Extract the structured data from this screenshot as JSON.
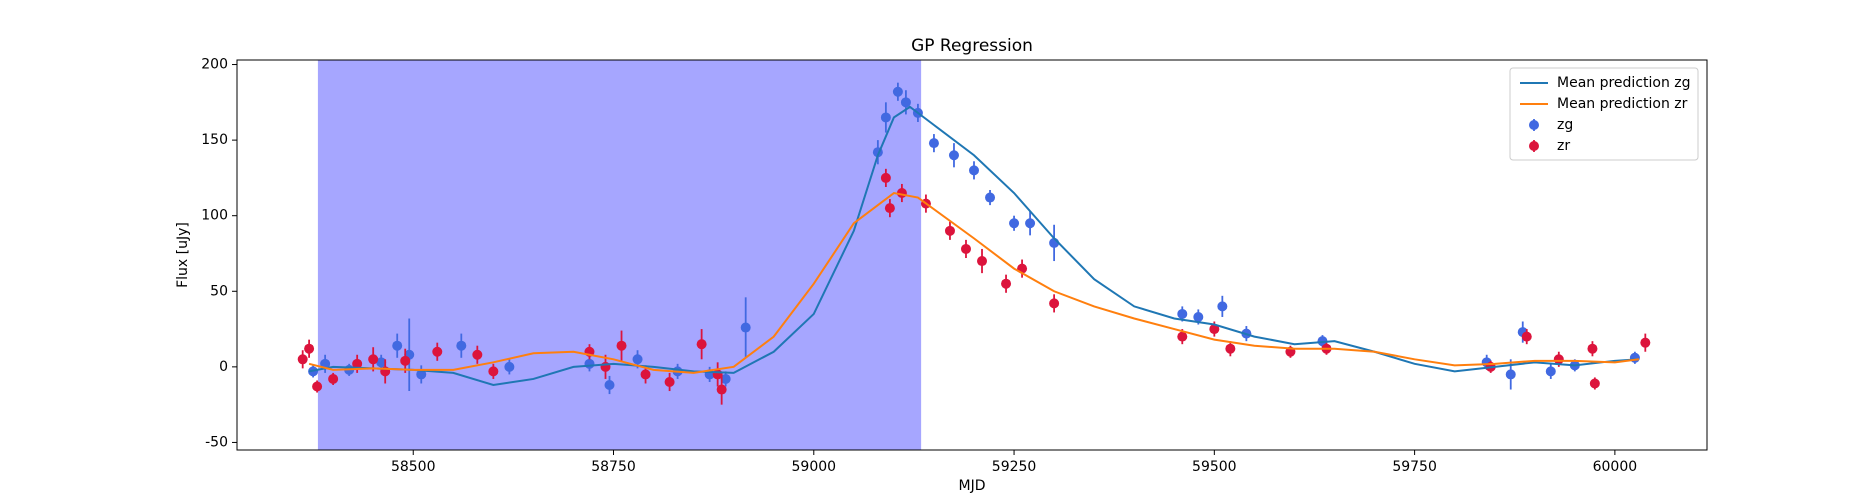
{
  "chart_data": {
    "type": "scatter",
    "title": "GP Regression",
    "xlabel": "MJD",
    "ylabel": "Flux [uJy]",
    "xlim": [
      58280,
      60115
    ],
    "ylim": [
      -55,
      203
    ],
    "xticks": [
      58500,
      58750,
      59000,
      59250,
      59500,
      59750,
      60000
    ],
    "yticks": [
      -50,
      0,
      50,
      100,
      150,
      200
    ],
    "legend": "upper right",
    "span": {
      "xlim": [
        58381,
        59134
      ],
      "color": "#0000ff",
      "opacity": 0.35
    },
    "lines": [
      {
        "name": "Mean prediction zg",
        "color": "#1f77b4",
        "x": [
          58370,
          58400,
          58450,
          58500,
          58550,
          58600,
          58650,
          58700,
          58750,
          58800,
          58850,
          58900,
          58950,
          59000,
          59050,
          59080,
          59100,
          59120,
          59150,
          59200,
          59250,
          59300,
          59350,
          59400,
          59450,
          59500,
          59550,
          59600,
          59650,
          59700,
          59750,
          59800,
          59850,
          59900,
          59950,
          60000,
          60030
        ],
        "values": [
          -3,
          0,
          -1,
          -2,
          -4,
          -12,
          -8,
          0,
          2,
          0,
          -3,
          -4,
          10,
          35,
          90,
          140,
          165,
          172,
          160,
          140,
          115,
          85,
          58,
          40,
          32,
          28,
          20,
          15,
          17,
          10,
          2,
          -3,
          0,
          3,
          1,
          4,
          5
        ]
      },
      {
        "name": "Mean prediction zr",
        "color": "#ff7f0e",
        "x": [
          58370,
          58400,
          58450,
          58500,
          58550,
          58600,
          58650,
          58700,
          58750,
          58800,
          58850,
          58900,
          58950,
          59000,
          59050,
          59100,
          59130,
          59200,
          59250,
          59300,
          59350,
          59400,
          59450,
          59500,
          59550,
          59600,
          59650,
          59700,
          59750,
          59800,
          59850,
          59900,
          59950,
          60000,
          60030
        ],
        "values": [
          2,
          -2,
          -1,
          -2,
          -2,
          3,
          9,
          10,
          5,
          -2,
          -4,
          0,
          20,
          55,
          95,
          115,
          112,
          85,
          65,
          50,
          40,
          32,
          25,
          18,
          14,
          12,
          12,
          10,
          5,
          1,
          2,
          4,
          4,
          3,
          5
        ]
      }
    ],
    "series": [
      {
        "name": "zg",
        "color": "#4169e1",
        "x": [
          58375,
          58390,
          58420,
          58460,
          58480,
          58495,
          58510,
          58560,
          58620,
          58720,
          58745,
          58780,
          58830,
          58870,
          58890,
          58915,
          59080,
          59090,
          59105,
          59115,
          59130,
          59150,
          59175,
          59200,
          59220,
          59250,
          59270,
          59300,
          59460,
          59480,
          59510,
          59540,
          59635,
          59840,
          59870,
          59885,
          59920,
          59950,
          60025
        ],
        "values": [
          -3,
          2,
          -2,
          3,
          14,
          8,
          -5,
          14,
          0,
          2,
          -12,
          5,
          -3,
          -5,
          -8,
          26,
          142,
          165,
          182,
          175,
          168,
          148,
          140,
          130,
          112,
          95,
          95,
          82,
          35,
          33,
          40,
          22,
          17,
          3,
          -5,
          23,
          -3,
          1,
          6
        ],
        "errors": [
          4,
          6,
          4,
          5,
          8,
          24,
          6,
          8,
          5,
          5,
          6,
          6,
          5,
          5,
          5,
          20,
          8,
          10,
          6,
          8,
          6,
          6,
          8,
          6,
          5,
          5,
          8,
          12,
          5,
          5,
          7,
          5,
          4,
          5,
          10,
          7,
          5,
          4,
          4
        ]
      },
      {
        "name": "zr",
        "color": "#dc143c",
        "x": [
          58362,
          58370,
          58380,
          58400,
          58430,
          58450,
          58465,
          58490,
          58530,
          58580,
          58600,
          58720,
          58740,
          58760,
          58790,
          58820,
          58860,
          58880,
          58885,
          59090,
          59095,
          59110,
          59140,
          59170,
          59190,
          59210,
          59240,
          59260,
          59300,
          59460,
          59500,
          59520,
          59595,
          59640,
          59845,
          59890,
          59930,
          59975,
          59972,
          60038
        ],
        "values": [
          5,
          12,
          -13,
          -8,
          2,
          5,
          -3,
          4,
          10,
          8,
          -3,
          10,
          0,
          14,
          -5,
          -10,
          15,
          -5,
          -15,
          125,
          105,
          115,
          108,
          90,
          78,
          70,
          55,
          65,
          42,
          20,
          25,
          12,
          10,
          12,
          0,
          20,
          5,
          -11,
          12,
          16
        ],
        "errors": [
          6,
          6,
          4,
          4,
          6,
          8,
          8,
          8,
          6,
          6,
          5,
          5,
          8,
          10,
          6,
          6,
          10,
          8,
          10,
          6,
          6,
          6,
          6,
          6,
          6,
          8,
          6,
          6,
          6,
          5,
          5,
          5,
          4,
          4,
          4,
          5,
          5,
          4,
          5,
          6
        ]
      }
    ]
  }
}
